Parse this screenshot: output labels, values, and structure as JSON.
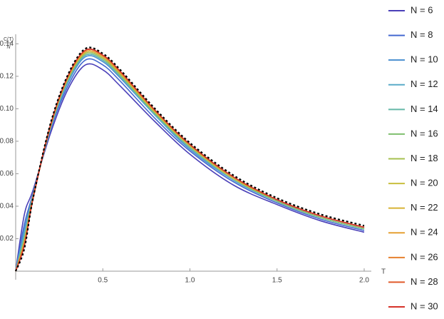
{
  "chart_data": {
    "type": "line",
    "ylabel": {
      "numerator": "C(T)",
      "denominator": "N"
    },
    "xlabel": "T",
    "x": [
      0,
      0.05,
      0.1,
      0.2,
      0.3,
      0.4,
      0.5,
      0.6,
      0.8,
      1.0,
      1.25,
      1.5,
      1.75,
      2.0
    ],
    "xlim": [
      0,
      2
    ],
    "ylim": [
      0,
      0.145
    ],
    "xticks": [
      0.5,
      {
        "value": 1.0,
        "label": "1.0"
      },
      1.5,
      {
        "value": 2.0,
        "label": "2.0"
      }
    ],
    "yticks": [
      0.02,
      0.04,
      0.06,
      0.08,
      {
        "value": 0.1,
        "label": "0.10"
      },
      0.12,
      0.14
    ],
    "legend": "right",
    "series": [
      {
        "name": "N = 6",
        "color": "#4a3fb8",
        "values": [
          0,
          0.035,
          0.05,
          0.085,
          0.112,
          0.127,
          0.124,
          0.114,
          0.092,
          0.072,
          0.053,
          0.041,
          0.031,
          0.024
        ]
      },
      {
        "name": "N = 8",
        "color": "#4469d0",
        "values": [
          0,
          0.029,
          0.048,
          0.087,
          0.114,
          0.13,
          0.127,
          0.117,
          0.094,
          0.074,
          0.055,
          0.042,
          0.032,
          0.025
        ]
      },
      {
        "name": "N = 10",
        "color": "#4a8fd0",
        "values": [
          0,
          0.026,
          0.047,
          0.088,
          0.116,
          0.132,
          0.129,
          0.119,
          0.096,
          0.075,
          0.056,
          0.043,
          0.033,
          0.026
        ]
      },
      {
        "name": "N = 12",
        "color": "#5aabc8",
        "values": [
          0,
          0.023,
          0.047,
          0.088,
          0.117,
          0.133,
          0.13,
          0.12,
          0.096,
          0.076,
          0.056,
          0.043,
          0.033,
          0.026
        ]
      },
      {
        "name": "N = 14",
        "color": "#65b8a8",
        "values": [
          0,
          0.021,
          0.046,
          0.089,
          0.118,
          0.133,
          0.13,
          0.12,
          0.097,
          0.076,
          0.057,
          0.043,
          0.033,
          0.026
        ]
      },
      {
        "name": "N = 16",
        "color": "#7fbf6e",
        "values": [
          0,
          0.02,
          0.046,
          0.089,
          0.118,
          0.134,
          0.131,
          0.121,
          0.097,
          0.077,
          0.057,
          0.043,
          0.033,
          0.026
        ]
      },
      {
        "name": "N = 18",
        "color": "#a6c04f",
        "values": [
          0,
          0.019,
          0.046,
          0.089,
          0.119,
          0.134,
          0.131,
          0.121,
          0.098,
          0.077,
          0.057,
          0.044,
          0.034,
          0.027
        ]
      },
      {
        "name": "N = 20",
        "color": "#c8be3e",
        "values": [
          0,
          0.018,
          0.046,
          0.089,
          0.119,
          0.135,
          0.132,
          0.122,
          0.098,
          0.077,
          0.057,
          0.044,
          0.034,
          0.027
        ]
      },
      {
        "name": "N = 22",
        "color": "#d8b335",
        "values": [
          0,
          0.018,
          0.045,
          0.09,
          0.119,
          0.135,
          0.132,
          0.122,
          0.098,
          0.078,
          0.058,
          0.044,
          0.034,
          0.027
        ]
      },
      {
        "name": "N = 24",
        "color": "#e5a032",
        "values": [
          0,
          0.017,
          0.045,
          0.09,
          0.12,
          0.135,
          0.132,
          0.122,
          0.099,
          0.078,
          0.058,
          0.044,
          0.034,
          0.027
        ]
      },
      {
        "name": "N = 26",
        "color": "#e6812e",
        "values": [
          0,
          0.017,
          0.045,
          0.09,
          0.12,
          0.136,
          0.133,
          0.123,
          0.099,
          0.078,
          0.058,
          0.044,
          0.034,
          0.027
        ]
      },
      {
        "name": "N = 28",
        "color": "#e05a2a",
        "values": [
          0,
          0.016,
          0.045,
          0.09,
          0.12,
          0.136,
          0.133,
          0.123,
          0.099,
          0.078,
          0.058,
          0.044,
          0.034,
          0.027
        ]
      },
      {
        "name": "N = 30",
        "color": "#d6332a",
        "values": [
          0,
          0.016,
          0.045,
          0.09,
          0.12,
          0.136,
          0.133,
          0.123,
          0.099,
          0.078,
          0.058,
          0.044,
          0.034,
          0.027
        ]
      }
    ],
    "limit": {
      "color": "#000000",
      "dashed": true,
      "values": [
        0,
        0.014,
        0.045,
        0.091,
        0.121,
        0.137,
        0.134,
        0.124,
        0.1,
        0.079,
        0.059,
        0.045,
        0.035,
        0.028
      ]
    }
  }
}
